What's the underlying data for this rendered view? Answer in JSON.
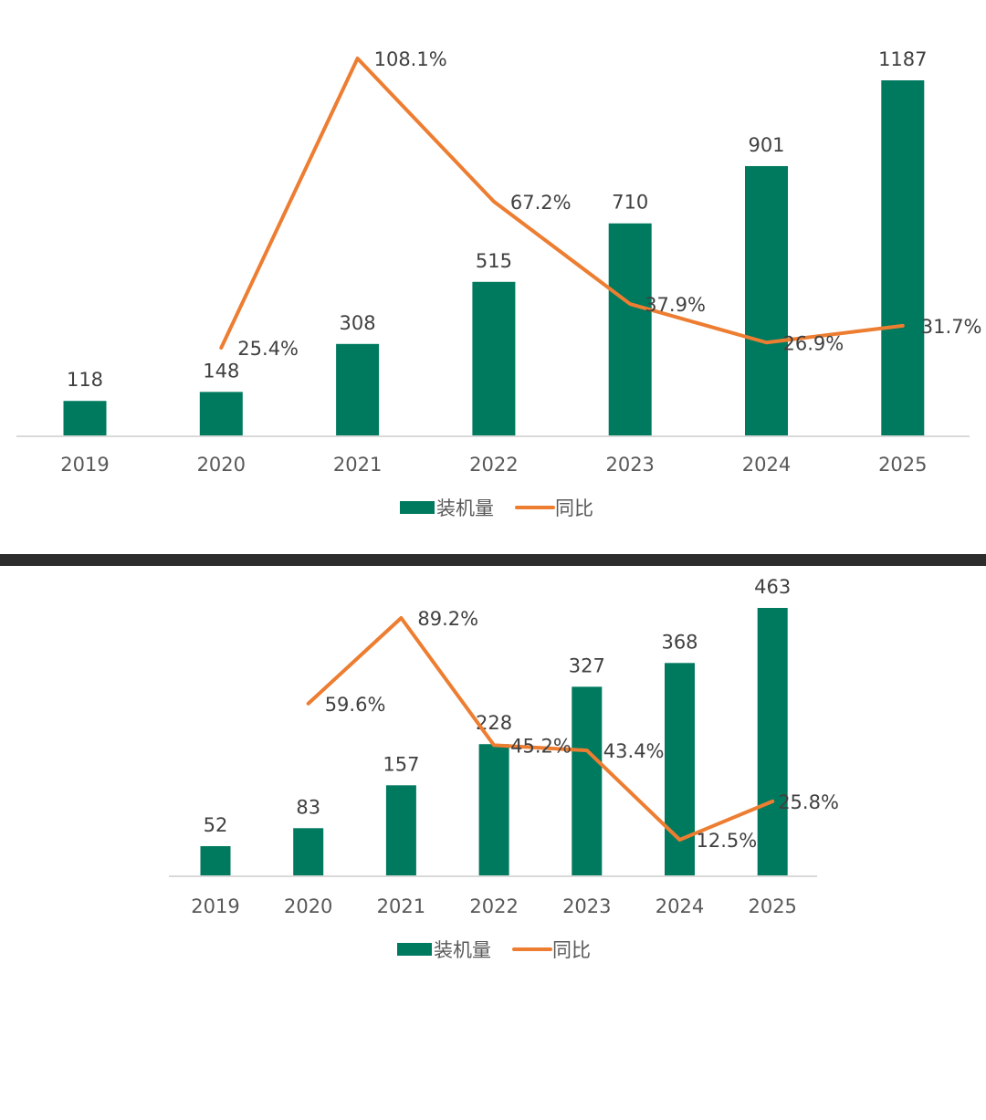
{
  "colors": {
    "bar": "#007a5e",
    "line": "#ed7d31",
    "axis": "#d9d9d9",
    "divider": "#2c2c2c"
  },
  "chart_data": [
    {
      "type": "bar",
      "categories": [
        "2019",
        "2020",
        "2021",
        "2022",
        "2023",
        "2024",
        "2025"
      ],
      "series": [
        {
          "name": "装机量",
          "type": "bar",
          "values": [
            118,
            148,
            308,
            515,
            710,
            901,
            1187
          ]
        },
        {
          "name": "同比",
          "type": "line",
          "values": [
            null,
            25.4,
            108.1,
            67.2,
            37.9,
            26.9,
            31.7
          ],
          "labels": [
            "",
            "25.4%",
            "108.1%",
            "67.2%",
            "37.9%",
            "26.9%",
            "31.7%"
          ]
        }
      ],
      "legend": "bottom"
    },
    {
      "type": "bar",
      "categories": [
        "2019",
        "2020",
        "2021",
        "2022",
        "2023",
        "2024",
        "2025"
      ],
      "series": [
        {
          "name": "装机量",
          "type": "bar",
          "values": [
            52,
            83,
            157,
            228,
            327,
            368,
            463
          ]
        },
        {
          "name": "同比",
          "type": "line",
          "values": [
            null,
            59.6,
            89.2,
            45.2,
            43.4,
            12.5,
            25.8
          ],
          "labels": [
            "",
            "59.6%",
            "89.2%",
            "45.2%",
            "43.4%",
            "12.5%",
            "25.8%"
          ]
        }
      ],
      "legend": "bottom"
    }
  ]
}
